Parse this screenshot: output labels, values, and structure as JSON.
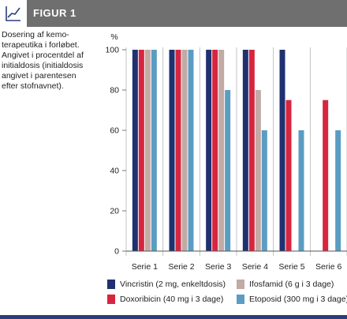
{
  "header": {
    "title": "FIGUR 1",
    "icon": "line-chart-icon",
    "background_color": "#6f6f6f"
  },
  "caption": "Dosering af kemo-\nterapeutika i forløbet.\nAngivet i procentdel af\ninitialdosis (initialdosis\nangivet i parentesen\nefter stofnavnet).",
  "chart_data": {
    "type": "bar",
    "categories": [
      "Serie 1",
      "Serie 2",
      "Serie 3",
      "Serie 4",
      "Serie 5",
      "Serie 6"
    ],
    "series": [
      {
        "name": "Vincristin (2 mg, enkeltdosis)",
        "color": "#1f3170",
        "values": [
          100,
          100,
          100,
          100,
          100,
          null
        ]
      },
      {
        "name": "Doxoribicin (40 mg i 3 dage)",
        "color": "#d6263f",
        "values": [
          100,
          100,
          100,
          100,
          75,
          75
        ]
      },
      {
        "name": "Ifosfamid (6 g i 3 dage)",
        "color": "#c2aaa5",
        "values": [
          100,
          100,
          100,
          80,
          null,
          null
        ]
      },
      {
        "name": "Etoposid (300 mg i 3 dage)",
        "color": "#5b9dc2",
        "values": [
          100,
          100,
          80,
          60,
          60,
          60
        ]
      }
    ],
    "ylabel": "%",
    "ylim": [
      0,
      100
    ],
    "yticks": [
      0,
      20,
      40,
      60,
      80,
      100
    ],
    "grid": "vertical-category-separators",
    "legend": "bottom"
  }
}
